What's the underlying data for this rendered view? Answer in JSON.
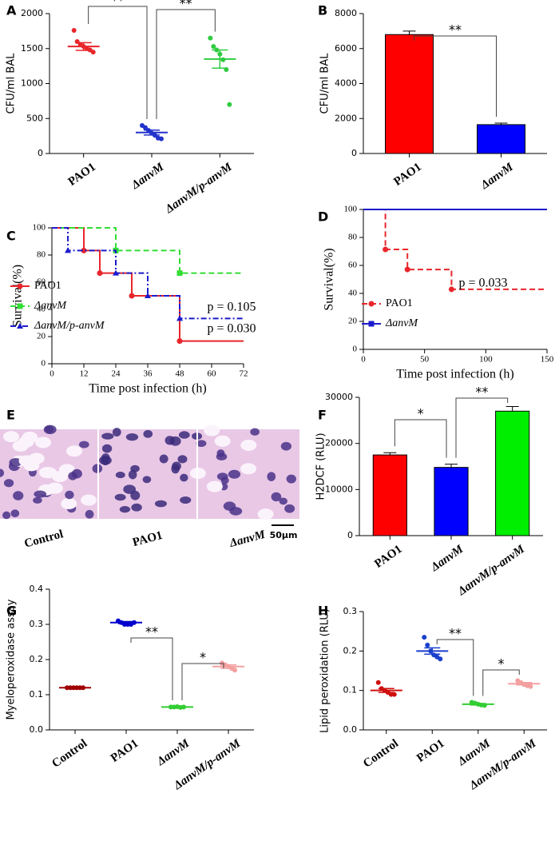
{
  "chart_data": [
    {
      "panel": "A",
      "type": "dot",
      "ylabel": "CFU/ml BAL",
      "categories": [
        "PAO1",
        "ΔanvM",
        "ΔanvM/p-anvM"
      ],
      "colors": [
        "#e8262b",
        "#2233cc",
        "#2ecc40"
      ],
      "points": [
        [
          1760,
          1600,
          1560,
          1530,
          1500,
          1480,
          1450
        ],
        [
          400,
          370,
          330,
          290,
          260,
          220,
          210
        ],
        [
          1650,
          1530,
          1480,
          1420,
          1340,
          1200,
          700
        ]
      ],
      "means": [
        1530,
        300,
        1350
      ],
      "errors": [
        55,
        35,
        130
      ],
      "ylim": [
        0,
        2000
      ],
      "yticks": [
        0,
        500,
        1000,
        1500,
        2000
      ],
      "annotations": [
        "**",
        "**"
      ]
    },
    {
      "panel": "B",
      "type": "bar",
      "ylabel": "CFU/ml BAL",
      "categories": [
        "PAO1",
        "ΔanvM"
      ],
      "colors": [
        "#ff0000",
        "#0000ff"
      ],
      "values": [
        6800,
        1650
      ],
      "errors": [
        200,
        90
      ],
      "ylim": [
        0,
        8000
      ],
      "yticks": [
        0,
        2000,
        4000,
        6000,
        8000
      ],
      "annotations": [
        "**"
      ]
    },
    {
      "panel": "C",
      "type": "line",
      "step": true,
      "xlabel": "Time post infection (h)",
      "ylabel": "Survival(%)",
      "x": [
        0,
        6,
        12,
        18,
        24,
        30,
        36,
        48,
        72
      ],
      "series": [
        {
          "name": "PAO1",
          "color": "#e8262b",
          "line_style": "solid",
          "values": [
            100,
            100,
            83.3,
            66.7,
            66.7,
            50,
            50,
            16.7,
            16.7
          ]
        },
        {
          "name": "ΔanvM",
          "color": "#33dd33",
          "line_style": "dashed",
          "values": [
            100,
            100,
            100,
            100,
            83.3,
            83.3,
            83.3,
            66.7,
            66.7
          ]
        },
        {
          "name": "ΔanvM/p-anvM",
          "color": "#1a1acc",
          "line_style": "dashdot",
          "values": [
            100,
            83.3,
            83.3,
            83.3,
            66.7,
            66.7,
            50,
            33.3,
            33.3
          ]
        }
      ],
      "xlim": [
        0,
        72
      ],
      "xticks": [
        0,
        12,
        24,
        36,
        48,
        60,
        72
      ],
      "ylim": [
        0,
        100
      ],
      "yticks": [
        0,
        20,
        40,
        60,
        80,
        100
      ],
      "annotations": [
        "p = 0.105",
        "p = 0.030"
      ]
    },
    {
      "panel": "D",
      "type": "line",
      "step": true,
      "xlabel": "Time post infection (h)",
      "ylabel": "Survival(%)",
      "x": [
        0,
        18,
        36,
        72,
        150
      ],
      "series": [
        {
          "name": "PAO1",
          "color": "#e8262b",
          "line_style": "dashed",
          "values": [
            100,
            71.4,
            57.1,
            42.9,
            42.9
          ]
        },
        {
          "name": "ΔanvM",
          "color": "#1a1acc",
          "line_style": "solid",
          "values": [
            100,
            100,
            100,
            100,
            100
          ]
        }
      ],
      "xlim": [
        0,
        150
      ],
      "xticks": [
        0,
        50,
        100,
        150
      ],
      "ylim": [
        0,
        100
      ],
      "yticks": [
        0,
        20,
        40,
        60,
        80,
        100
      ],
      "annotations": [
        "p = 0.033"
      ]
    },
    {
      "panel": "E",
      "type": "image",
      "labels": [
        "Control",
        "PAO1",
        "ΔanvM"
      ],
      "scale_bar": "50μm"
    },
    {
      "panel": "F",
      "type": "bar",
      "ylabel": "H2DCF (RLU)",
      "categories": [
        "PAO1",
        "ΔanvM",
        "ΔanvM/p-anvM"
      ],
      "colors": [
        "#ff0000",
        "#0000ff",
        "#00ee00"
      ],
      "values": [
        17500,
        14800,
        27000
      ],
      "errors": [
        500,
        700,
        1000
      ],
      "ylim": [
        0,
        30000
      ],
      "yticks": [
        0,
        10000,
        20000,
        30000
      ],
      "annotations": [
        "*",
        "**"
      ]
    },
    {
      "panel": "G",
      "type": "dot",
      "ylabel": "Myeloperoxidase assay",
      "categories": [
        "Control",
        "PAO1",
        "ΔanvM",
        "ΔanvM/p-anvM"
      ],
      "colors": [
        "#a00000",
        "#0000cd",
        "#32cd32",
        "#f4a0a0"
      ],
      "points": [
        [
          0.12,
          0.12,
          0.12,
          0.12,
          0.12,
          0.12
        ],
        [
          0.31,
          0.305,
          0.3,
          0.3,
          0.3,
          0.305
        ],
        [
          0.065,
          0.065,
          0.066,
          0.064,
          0.065
        ],
        [
          0.19,
          0.185,
          0.18,
          0.175,
          0.17
        ]
      ],
      "means": [
        0.12,
        0.305,
        0.065,
        0.18
      ],
      "errors": [
        0.002,
        0.003,
        0.001,
        0.005
      ],
      "ylim": [
        0,
        0.4
      ],
      "yticks": [
        {
          "value": 0,
          "label": "0.0"
        },
        0.1,
        0.2,
        0.3,
        0.4
      ],
      "annotations": [
        "**",
        "*"
      ]
    },
    {
      "panel": "H",
      "type": "dot",
      "ylabel": "Lipid peroxidation (RLU)",
      "categories": [
        "Control",
        "PAO1",
        "ΔanvM",
        "ΔanvM/p-anvM"
      ],
      "colors": [
        "#d01010",
        "#1a3fcc",
        "#32cd32",
        "#f4a0a0"
      ],
      "points": [
        [
          0.12,
          0.105,
          0.1,
          0.095,
          0.09,
          0.09
        ],
        [
          0.235,
          0.215,
          0.2,
          0.19,
          0.185,
          0.18
        ],
        [
          0.07,
          0.068,
          0.065,
          0.063,
          0.062
        ],
        [
          0.125,
          0.12,
          0.115,
          0.112,
          0.11
        ]
      ],
      "means": [
        0.1,
        0.2,
        0.065,
        0.117
      ],
      "errors": [
        0.005,
        0.008,
        0.002,
        0.003
      ],
      "ylim": [
        0,
        0.3
      ],
      "yticks": [
        {
          "value": 0,
          "label": "0.0"
        },
        0.1,
        0.2,
        0.3
      ],
      "annotations": [
        "**",
        "*"
      ]
    }
  ]
}
